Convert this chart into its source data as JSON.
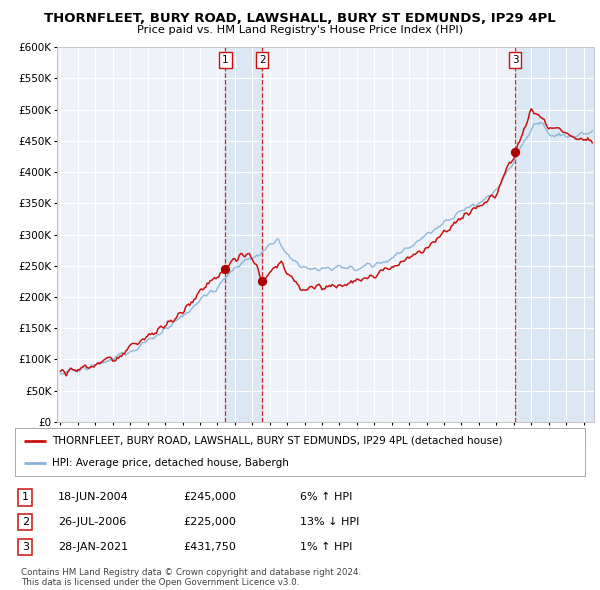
{
  "title": "THORNFLEET, BURY ROAD, LAWSHALL, BURY ST EDMUNDS, IP29 4PL",
  "subtitle": "Price paid vs. HM Land Registry's House Price Index (HPI)",
  "legend_line1": "THORNFLEET, BURY ROAD, LAWSHALL, BURY ST EDMUNDS, IP29 4PL (detached house)",
  "legend_line2": "HPI: Average price, detached house, Babergh",
  "footer1": "Contains HM Land Registry data © Crown copyright and database right 2024.",
  "footer2": "This data is licensed under the Open Government Licence v3.0.",
  "transactions": [
    {
      "num": 1,
      "date": "18-JUN-2004",
      "price": "£245,000",
      "pct": "6% ↑ HPI"
    },
    {
      "num": 2,
      "date": "26-JUL-2006",
      "price": "£225,000",
      "pct": "13% ↓ HPI"
    },
    {
      "num": 3,
      "date": "28-JAN-2021",
      "price": "£431,750",
      "pct": "1% ↑ HPI"
    }
  ],
  "sale1_year": 2004.46,
  "sale2_year": 2006.57,
  "sale3_year": 2021.07,
  "sale1_price": 245000,
  "sale2_price": 225000,
  "sale3_price": 431750,
  "ylim": [
    0,
    600000
  ],
  "yticks": [
    0,
    50000,
    100000,
    150000,
    200000,
    250000,
    300000,
    350000,
    400000,
    450000,
    500000,
    550000,
    600000
  ],
  "background_color": "#ffffff",
  "plot_bg": "#eef2f8",
  "grid_color": "#ffffff",
  "hpi_color": "#89b4d8",
  "price_color": "#cc1111",
  "dot_color": "#aa0000",
  "vline_color": "#cc1111",
  "shade_color": "#d8e6f3",
  "title_fontsize": 9.5,
  "subtitle_fontsize": 8.5,
  "start_year": 1995,
  "end_year": 2025
}
